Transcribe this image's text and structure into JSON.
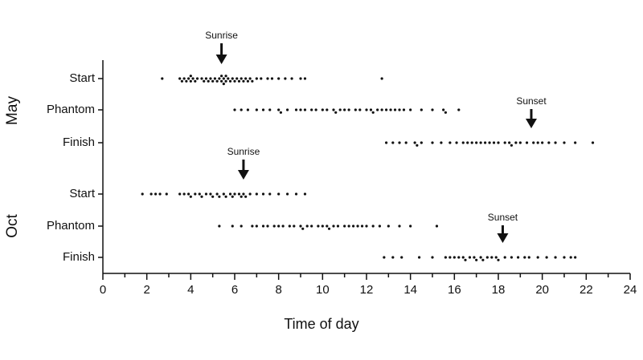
{
  "chart_data": {
    "type": "beeswarm",
    "x_label": "Time of day",
    "xlim": [
      0,
      24
    ],
    "xticks": [
      0,
      2,
      4,
      6,
      8,
      10,
      12,
      14,
      16,
      18,
      20,
      22,
      24
    ],
    "color": "#111111",
    "groups": [
      {
        "name": "May",
        "rows": [
          {
            "name": "Start",
            "values": [
              2.7,
              3.5,
              3.6,
              3.7,
              3.8,
              3.9,
              4.0,
              4.0,
              4.1,
              4.2,
              4.3,
              4.5,
              4.6,
              4.7,
              4.8,
              4.9,
              5.0,
              5.1,
              5.2,
              5.3,
              5.4,
              5.4,
              5.5,
              5.5,
              5.6,
              5.6,
              5.7,
              5.8,
              5.9,
              6.0,
              6.1,
              6.2,
              6.3,
              6.4,
              6.5,
              6.6,
              6.7,
              6.8,
              7.0,
              7.2,
              7.5,
              7.7,
              8.0,
              8.3,
              8.6,
              9.0,
              9.2,
              12.7
            ]
          },
          {
            "name": "Phantom",
            "values": [
              6.0,
              6.3,
              6.6,
              7.0,
              7.3,
              7.6,
              8.0,
              8.1,
              8.4,
              8.8,
              9.0,
              9.2,
              9.5,
              9.7,
              10.0,
              10.2,
              10.5,
              10.6,
              10.8,
              11.0,
              11.2,
              11.5,
              11.7,
              12.0,
              12.2,
              12.3,
              12.5,
              12.7,
              12.9,
              13.1,
              13.3,
              13.5,
              13.7,
              14.0,
              14.5,
              15.0,
              15.5,
              15.6,
              16.2
            ]
          },
          {
            "name": "Finish",
            "values": [
              12.9,
              13.2,
              13.5,
              13.8,
              14.2,
              14.3,
              14.5,
              15.0,
              15.4,
              15.8,
              16.1,
              16.4,
              16.6,
              16.8,
              17.0,
              17.2,
              17.4,
              17.6,
              17.8,
              18.0,
              18.3,
              18.5,
              18.6,
              18.8,
              19.0,
              19.3,
              19.6,
              19.8,
              20.0,
              20.3,
              20.6,
              21.0,
              21.5,
              22.3
            ]
          }
        ]
      },
      {
        "name": "Oct",
        "rows": [
          {
            "name": "Start",
            "values": [
              1.8,
              2.2,
              2.4,
              2.6,
              2.9,
              3.5,
              3.7,
              3.9,
              4.0,
              4.2,
              4.4,
              4.5,
              4.7,
              4.9,
              5.0,
              5.2,
              5.3,
              5.5,
              5.6,
              5.8,
              5.9,
              6.0,
              6.2,
              6.3,
              6.4,
              6.5,
              6.7,
              7.0,
              7.3,
              7.6,
              8.0,
              8.4,
              8.8,
              9.2
            ]
          },
          {
            "name": "Phantom",
            "values": [
              5.3,
              5.9,
              6.3,
              6.8,
              7.0,
              7.3,
              7.5,
              7.8,
              8.0,
              8.2,
              8.5,
              8.7,
              9.0,
              9.1,
              9.3,
              9.5,
              9.8,
              10.0,
              10.2,
              10.3,
              10.5,
              10.7,
              11.0,
              11.2,
              11.4,
              11.6,
              11.8,
              12.0,
              12.3,
              12.6,
              13.0,
              13.5,
              14.0,
              15.2
            ]
          },
          {
            "name": "Finish",
            "values": [
              12.8,
              13.2,
              13.6,
              14.4,
              15.0,
              15.6,
              15.8,
              16.0,
              16.2,
              16.4,
              16.5,
              16.7,
              16.9,
              17.0,
              17.2,
              17.3,
              17.5,
              17.7,
              17.9,
              18.0,
              18.3,
              18.6,
              18.9,
              19.2,
              19.4,
              19.8,
              20.2,
              20.6,
              21.0,
              21.3,
              21.5
            ]
          }
        ]
      }
    ],
    "annotations": [
      {
        "label": "Sunrise",
        "group": 0,
        "x": 5.4
      },
      {
        "label": "Sunset",
        "group": 0,
        "x": 19.5
      },
      {
        "label": "Sunrise",
        "group": 1,
        "x": 6.4
      },
      {
        "label": "Sunset",
        "group": 1,
        "x": 18.2
      }
    ]
  }
}
